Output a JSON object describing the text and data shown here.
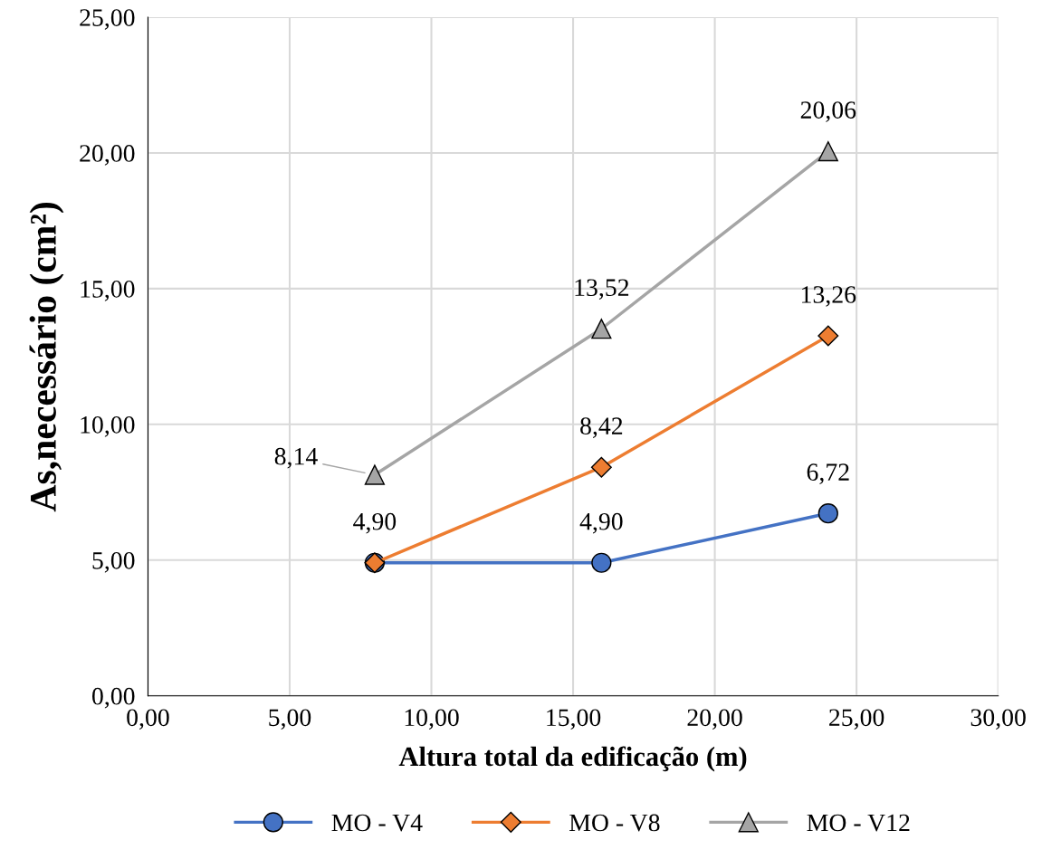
{
  "chart_data": {
    "type": "line",
    "xlabel": "Altura total da edificação (m)",
    "ylabel": "As,necessário (cm²)",
    "xlim": [
      0,
      30
    ],
    "ylim": [
      0,
      25
    ],
    "xticks": [
      {
        "value": 0,
        "label": "0,00"
      },
      {
        "value": 5,
        "label": "5,00"
      },
      {
        "value": 10,
        "label": "10,00"
      },
      {
        "value": 15,
        "label": "15,00"
      },
      {
        "value": 20,
        "label": "20,00"
      },
      {
        "value": 25,
        "label": "25,00"
      },
      {
        "value": 30,
        "label": "30,00"
      }
    ],
    "yticks": [
      {
        "value": 0,
        "label": "0,00"
      },
      {
        "value": 5,
        "label": "5,00"
      },
      {
        "value": 10,
        "label": "10,00"
      },
      {
        "value": 15,
        "label": "15,00"
      },
      {
        "value": 20,
        "label": "20,00"
      },
      {
        "value": 25,
        "label": "25,00"
      }
    ],
    "grid": true,
    "legend": "bottom",
    "line_style": "solid",
    "series": [
      {
        "name": "MO - V4",
        "color": "#4472c4",
        "marker": "circle",
        "x": [
          8,
          16,
          24
        ],
        "values": [
          4.9,
          4.9,
          6.72
        ],
        "value_labels": [
          "4,90",
          "4,90",
          "6,72"
        ]
      },
      {
        "name": "MO - V8",
        "color": "#ed7d31",
        "marker": "diamond",
        "x": [
          8,
          16,
          24
        ],
        "values": [
          4.9,
          8.42,
          13.26
        ],
        "value_labels": [
          null,
          "8,42",
          "13,26"
        ]
      },
      {
        "name": "MO - V12",
        "color": "#a5a5a5",
        "marker": "triangle",
        "x": [
          8,
          16,
          24
        ],
        "values": [
          8.14,
          13.52,
          20.06
        ],
        "value_labels": [
          "8,14",
          "13,52",
          "20,06"
        ]
      }
    ]
  }
}
